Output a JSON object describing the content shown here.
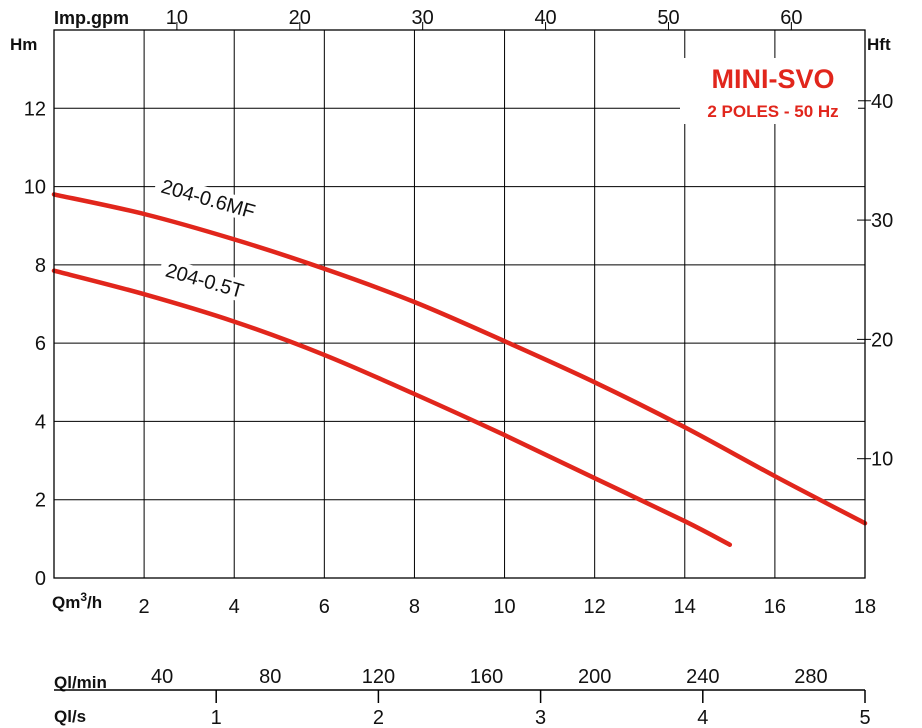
{
  "chart_data": {
    "type": "line",
    "title": "MINI-SVO",
    "subtitle": "2 POLES - 50 Hz",
    "xlabel": "Qm3/h",
    "ylabel": "Hm",
    "xlim": [
      0,
      18
    ],
    "ylim": [
      0,
      14
    ],
    "grid": true,
    "x_ticks": [
      2,
      4,
      6,
      8,
      10,
      12,
      14,
      16,
      18
    ],
    "y_ticks": [
      0,
      2,
      4,
      6,
      8,
      10,
      12
    ],
    "y2_label": "Hft",
    "y2_ticks": [
      10,
      20,
      30,
      40
    ],
    "top_axis_label": "Imp.gpm",
    "top_axis_ticks": [
      10,
      20,
      30,
      40,
      50,
      60
    ],
    "lmin_label": "Ql/min",
    "lmin_ticks": [
      40,
      80,
      120,
      160,
      200,
      240,
      280
    ],
    "ls_label": "Ql/s",
    "ls_ticks": [
      1,
      2,
      3,
      4,
      5
    ],
    "series": [
      {
        "name": "204-0.6MF",
        "color": "#e1261c",
        "x": [
          0,
          2,
          4,
          6,
          8,
          10,
          12,
          14,
          16,
          18
        ],
        "y": [
          9.8,
          9.3,
          8.65,
          7.9,
          7.05,
          6.05,
          5.0,
          3.85,
          2.6,
          1.4
        ]
      },
      {
        "name": "204-0.5T",
        "color": "#e1261c",
        "x": [
          0,
          2,
          4,
          6,
          8,
          10,
          12,
          14,
          15
        ],
        "y": [
          7.85,
          7.25,
          6.55,
          5.7,
          4.7,
          3.65,
          2.55,
          1.45,
          0.85
        ]
      }
    ]
  }
}
